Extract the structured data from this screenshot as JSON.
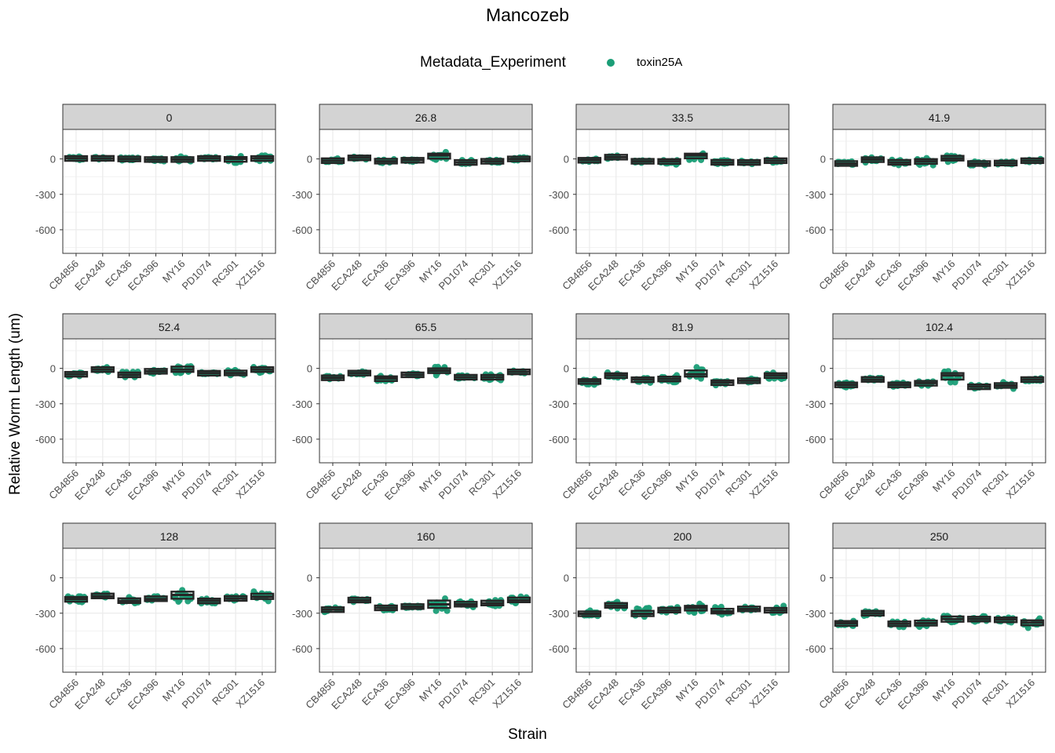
{
  "chart_data": {
    "type": "box",
    "title": "Mancozeb",
    "xlabel": "Strain",
    "ylabel": "Relative Worm Length (um)",
    "legend": {
      "title": "Metadata_Experiment",
      "entries": [
        "toxin25A"
      ],
      "position": "top"
    },
    "point_color": "#1b9e77",
    "box_fill": "#ffffff",
    "box_line_color": "#262626",
    "strip_fill": "#d3d3d3",
    "categories": [
      "CB4856",
      "ECA248",
      "ECA36",
      "ECA396",
      "MY16",
      "PD1074",
      "RC301",
      "XZ1516"
    ],
    "ylim": [
      -800,
      250
    ],
    "yticks": [
      0,
      -300,
      -600
    ],
    "grid": true,
    "facets": [
      {
        "label": "0",
        "values": [
          [
            5,
            -15,
            20
          ],
          [
            5,
            -10,
            20
          ],
          [
            0,
            -15,
            15
          ],
          [
            -5,
            -25,
            15
          ],
          [
            -5,
            -35,
            25
          ],
          [
            5,
            -10,
            15
          ],
          [
            0,
            -40,
            25
          ],
          [
            5,
            -25,
            30
          ]
        ]
      },
      {
        "label": "26.8",
        "values": [
          [
            -15,
            -35,
            5
          ],
          [
            10,
            -5,
            20
          ],
          [
            -20,
            -35,
            0
          ],
          [
            -10,
            -25,
            0
          ],
          [
            30,
            -25,
            60
          ],
          [
            -30,
            -50,
            -10
          ],
          [
            -20,
            -35,
            -5
          ],
          [
            0,
            -15,
            15
          ]
        ]
      },
      {
        "label": "33.5",
        "values": [
          [
            -10,
            -30,
            5
          ],
          [
            15,
            0,
            30
          ],
          [
            -20,
            -35,
            -5
          ],
          [
            -20,
            -50,
            5
          ],
          [
            30,
            -10,
            50
          ],
          [
            -30,
            -45,
            -10
          ],
          [
            -30,
            -45,
            -15
          ],
          [
            -15,
            -35,
            5
          ]
        ]
      },
      {
        "label": "41.9",
        "values": [
          [
            -40,
            -60,
            -15
          ],
          [
            -5,
            -30,
            15
          ],
          [
            -30,
            -55,
            0
          ],
          [
            -20,
            -55,
            10
          ],
          [
            5,
            -25,
            40
          ],
          [
            -40,
            -55,
            -20
          ],
          [
            -35,
            -50,
            -20
          ],
          [
            -15,
            -30,
            0
          ]
        ]
      },
      {
        "label": "52.4",
        "values": [
          [
            -50,
            -70,
            -30
          ],
          [
            -10,
            -30,
            10
          ],
          [
            -55,
            -95,
            -15
          ],
          [
            -25,
            -45,
            -5
          ],
          [
            -10,
            -50,
            40
          ],
          [
            -40,
            -55,
            -30
          ],
          [
            -40,
            -60,
            -15
          ],
          [
            -10,
            -40,
            20
          ]
        ]
      },
      {
        "label": "65.5",
        "values": [
          [
            -80,
            -95,
            -65
          ],
          [
            -40,
            -55,
            -25
          ],
          [
            -85,
            -120,
            -60
          ],
          [
            -55,
            -75,
            -35
          ],
          [
            -20,
            -60,
            20
          ],
          [
            -75,
            -95,
            -55
          ],
          [
            -75,
            -105,
            -45
          ],
          [
            -30,
            -45,
            -15
          ]
        ]
      },
      {
        "label": "81.9",
        "values": [
          [
            -110,
            -140,
            -85
          ],
          [
            -60,
            -90,
            -35
          ],
          [
            -95,
            -125,
            -70
          ],
          [
            -90,
            -125,
            -55
          ],
          [
            -50,
            -90,
            15
          ],
          [
            -120,
            -145,
            -100
          ],
          [
            -105,
            -125,
            -85
          ],
          [
            -60,
            -90,
            -35
          ]
        ]
      },
      {
        "label": "102.4",
        "values": [
          [
            -140,
            -165,
            -115
          ],
          [
            -95,
            -110,
            -75
          ],
          [
            -140,
            -160,
            -120
          ],
          [
            -125,
            -150,
            -105
          ],
          [
            -60,
            -130,
            -20
          ],
          [
            -155,
            -175,
            -140
          ],
          [
            -145,
            -175,
            -115
          ],
          [
            -95,
            -115,
            -75
          ]
        ]
      },
      {
        "label": "128",
        "values": [
          [
            -180,
            -215,
            -155
          ],
          [
            -155,
            -170,
            -135
          ],
          [
            -195,
            -225,
            -160
          ],
          [
            -180,
            -205,
            -145
          ],
          [
            -145,
            -210,
            -90
          ],
          [
            -195,
            -225,
            -170
          ],
          [
            -175,
            -205,
            -145
          ],
          [
            -160,
            -200,
            -110
          ]
        ]
      },
      {
        "label": "160",
        "values": [
          [
            -270,
            -290,
            -250
          ],
          [
            -190,
            -205,
            -170
          ],
          [
            -255,
            -285,
            -225
          ],
          [
            -245,
            -265,
            -220
          ],
          [
            -225,
            -285,
            -160
          ],
          [
            -225,
            -250,
            -195
          ],
          [
            -215,
            -240,
            -185
          ],
          [
            -190,
            -220,
            -150
          ]
        ]
      },
      {
        "label": "200",
        "values": [
          [
            -305,
            -335,
            -275
          ],
          [
            -235,
            -265,
            -200
          ],
          [
            -305,
            -345,
            -255
          ],
          [
            -275,
            -300,
            -245
          ],
          [
            -255,
            -300,
            -220
          ],
          [
            -285,
            -315,
            -245
          ],
          [
            -265,
            -285,
            -240
          ],
          [
            -275,
            -315,
            -235
          ]
        ]
      },
      {
        "label": "250",
        "values": [
          [
            -385,
            -420,
            -355
          ],
          [
            -300,
            -330,
            -270
          ],
          [
            -390,
            -420,
            -360
          ],
          [
            -385,
            -425,
            -340
          ],
          [
            -350,
            -395,
            -305
          ],
          [
            -350,
            -375,
            -325
          ],
          [
            -355,
            -385,
            -330
          ],
          [
            -380,
            -425,
            -340
          ]
        ]
      }
    ]
  }
}
